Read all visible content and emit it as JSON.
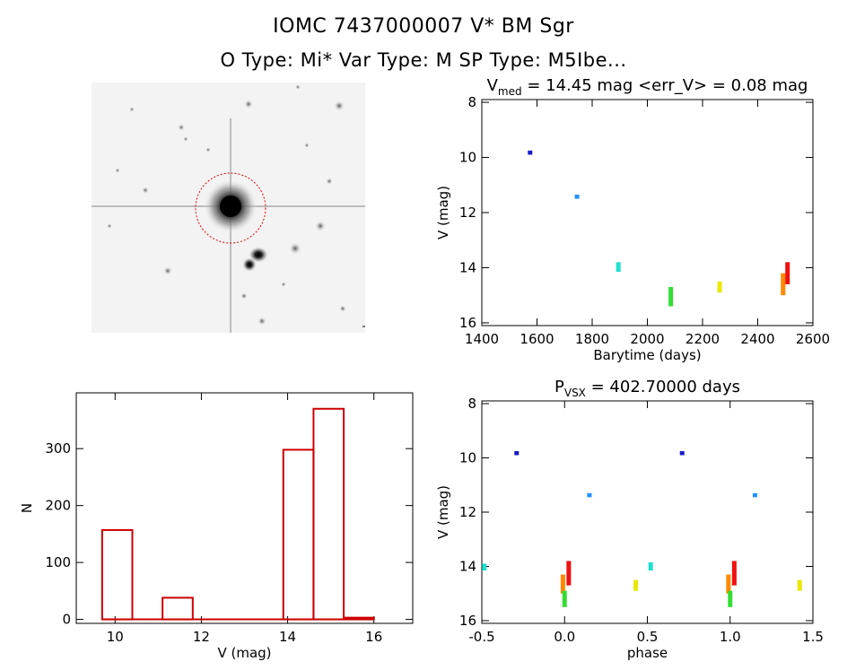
{
  "header": {
    "title_line1": "IOMC 7437000007    V* BM Sgr",
    "title_line2": "O Type: Mi*   Var Type: M   SP Type: M5Ibe..."
  },
  "colors": {
    "hist_bar": "#cc0000",
    "circle": "#dd0000"
  },
  "chart_data": [
    {
      "id": "lightcurve",
      "type": "scatter",
      "title_main": "V",
      "title_sub": "med",
      "title_rest": " = 14.45 mag <err_V> = 0.08 mag",
      "xlabel": "Barytime (days)",
      "ylabel": "V (mag)",
      "xlim": [
        1400,
        2600
      ],
      "ylim": [
        16.1,
        7.9
      ],
      "xticks": [
        1400,
        1600,
        1800,
        2000,
        2200,
        2400,
        2600
      ],
      "yticks": [
        8,
        10,
        12,
        14,
        16
      ],
      "points": [
        {
          "x": 1575,
          "y1": 9.75,
          "y2": 9.9,
          "color": "#1a1ac8"
        },
        {
          "x": 1745,
          "y1": 11.35,
          "y2": 11.5,
          "color": "#1e90ff"
        },
        {
          "x": 1895,
          "y1": 13.8,
          "y2": 14.15,
          "color": "#20e0d0"
        },
        {
          "x": 2085,
          "y1": 14.7,
          "y2": 15.4,
          "color": "#33dd33"
        },
        {
          "x": 2262,
          "y1": 14.5,
          "y2": 14.9,
          "color": "#e8e800"
        },
        {
          "x": 2492,
          "y1": 14.2,
          "y2": 15.0,
          "color": "#ff8800"
        },
        {
          "x": 2508,
          "y1": 13.8,
          "y2": 14.6,
          "color": "#ee1111"
        }
      ]
    },
    {
      "id": "phased",
      "type": "scatter",
      "title_main": "P",
      "title_sub": "VSX",
      "title_rest": " = 402.70000 days",
      "xlabel": "phase",
      "ylabel": "V (mag)",
      "xlim": [
        -0.5,
        1.5
      ],
      "ylim": [
        16.1,
        7.9
      ],
      "xticks": [
        -0.5,
        0.0,
        0.5,
        1.0,
        1.5
      ],
      "xtick_labels": [
        "-0.5",
        "0.0",
        "0.5",
        "1.0",
        "1.5"
      ],
      "yticks": [
        8,
        10,
        12,
        14,
        16
      ],
      "points": [
        {
          "x": -0.29,
          "y1": 9.75,
          "y2": 9.9,
          "color": "#1a1ac8"
        },
        {
          "x": 0.71,
          "y1": 9.75,
          "y2": 9.9,
          "color": "#1a1ac8"
        },
        {
          "x": 0.15,
          "y1": 11.3,
          "y2": 11.45,
          "color": "#1e90ff"
        },
        {
          "x": 1.15,
          "y1": 11.3,
          "y2": 11.45,
          "color": "#1e90ff"
        },
        {
          "x": -0.485,
          "y1": 13.9,
          "y2": 14.15,
          "color": "#20e0d0"
        },
        {
          "x": 0.52,
          "y1": 13.85,
          "y2": 14.15,
          "color": "#20e0d0"
        },
        {
          "x": 0.43,
          "y1": 14.5,
          "y2": 14.9,
          "color": "#e8e800"
        },
        {
          "x": 1.42,
          "y1": 14.5,
          "y2": 14.9,
          "color": "#e8e800"
        },
        {
          "x": -0.01,
          "y1": 14.3,
          "y2": 15.0,
          "color": "#ff8800"
        },
        {
          "x": 0.99,
          "y1": 14.3,
          "y2": 15.0,
          "color": "#ff8800"
        },
        {
          "x": 0.0,
          "y1": 14.9,
          "y2": 15.5,
          "color": "#33dd33"
        },
        {
          "x": 1.0,
          "y1": 14.9,
          "y2": 15.5,
          "color": "#33dd33"
        },
        {
          "x": 0.025,
          "y1": 13.8,
          "y2": 14.7,
          "color": "#ee1111"
        },
        {
          "x": 1.025,
          "y1": 13.8,
          "y2": 14.7,
          "color": "#ee1111"
        }
      ]
    },
    {
      "id": "histogram",
      "type": "bar",
      "title": "",
      "xlabel": "V (mag)",
      "ylabel": "N",
      "xlim": [
        9.1,
        16.9
      ],
      "ylim": [
        -7,
        398
      ],
      "xticks": [
        10,
        12,
        14,
        16
      ],
      "yticks": [
        0,
        100,
        200,
        300
      ],
      "bins": [
        {
          "x0": 9.7,
          "x1": 10.4,
          "count": 157
        },
        {
          "x0": 10.4,
          "x1": 11.1,
          "count": 0
        },
        {
          "x0": 11.1,
          "x1": 11.8,
          "count": 38
        },
        {
          "x0": 11.8,
          "x1": 12.5,
          "count": 0
        },
        {
          "x0": 12.5,
          "x1": 13.2,
          "count": 0
        },
        {
          "x0": 13.2,
          "x1": 13.9,
          "count": 0
        },
        {
          "x0": 13.9,
          "x1": 14.6,
          "count": 298
        },
        {
          "x0": 14.6,
          "x1": 15.3,
          "count": 370
        },
        {
          "x0": 15.3,
          "x1": 16.0,
          "count": 3
        }
      ]
    }
  ]
}
